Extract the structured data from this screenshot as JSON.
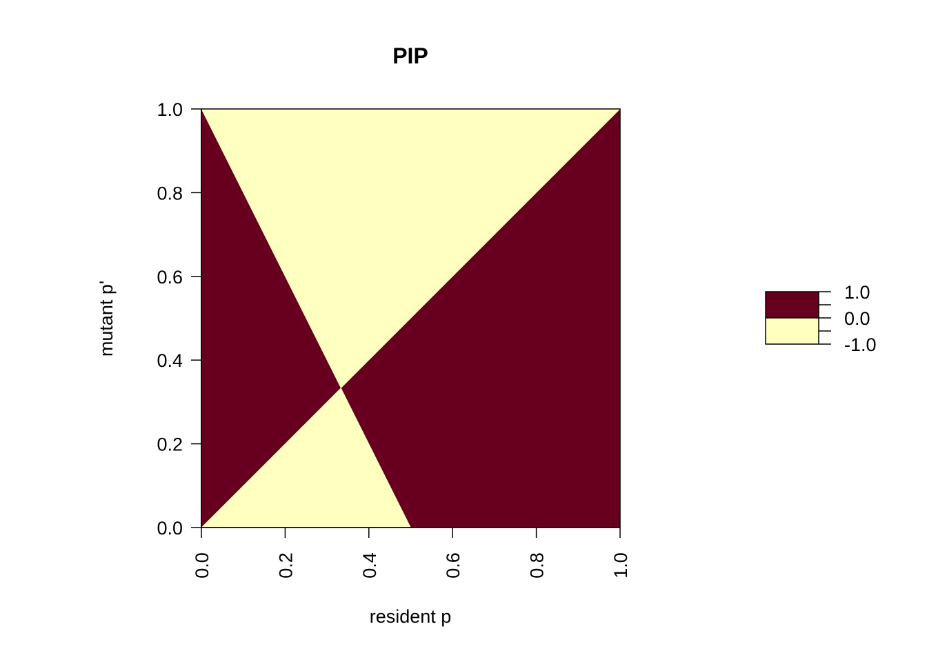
{
  "chart_data": {
    "type": "heatmap",
    "title": "PIP",
    "xlabel": "resident p",
    "ylabel": "mutant p'",
    "xlim": [
      0,
      1
    ],
    "ylim": [
      0,
      1
    ],
    "x_ticks": [
      "0.0",
      "0.2",
      "0.4",
      "0.6",
      "0.8",
      "1.0"
    ],
    "y_ticks": [
      "0.0",
      "0.2",
      "0.4",
      "0.6",
      "0.8",
      "1.0"
    ],
    "x_tick_values": [
      0,
      0.2,
      0.4,
      0.6,
      0.8,
      1.0
    ],
    "y_tick_values": [
      0,
      0.2,
      0.4,
      0.6,
      0.8,
      1.0
    ],
    "grid": false,
    "regions": [
      {
        "value": 1,
        "color": "#67001f",
        "polygon": [
          [
            0,
            0
          ],
          [
            0.3333,
            0.3333
          ],
          [
            0,
            1
          ]
        ]
      },
      {
        "value": 1,
        "color": "#67001f",
        "polygon": [
          [
            0.5,
            0
          ],
          [
            1,
            0
          ],
          [
            1,
            1
          ],
          [
            0.3333,
            0.3333
          ]
        ]
      },
      {
        "value": -1,
        "color": "#ffffbf",
        "polygon": [
          [
            0,
            1
          ],
          [
            1,
            1
          ],
          [
            0.3333,
            0.3333
          ]
        ]
      },
      {
        "value": -1,
        "color": "#ffffbf",
        "polygon": [
          [
            0,
            0
          ],
          [
            0.5,
            0
          ],
          [
            0.3333,
            0.3333
          ]
        ]
      }
    ],
    "legend": {
      "placement": "right",
      "labels": [
        "1.0",
        "0.0",
        "-1.0"
      ],
      "label_values": [
        1,
        0,
        -1
      ],
      "bins": [
        {
          "from": 0,
          "to": 1,
          "color": "#67001f"
        },
        {
          "from": -1,
          "to": 0,
          "color": "#ffffbf"
        }
      ]
    }
  }
}
